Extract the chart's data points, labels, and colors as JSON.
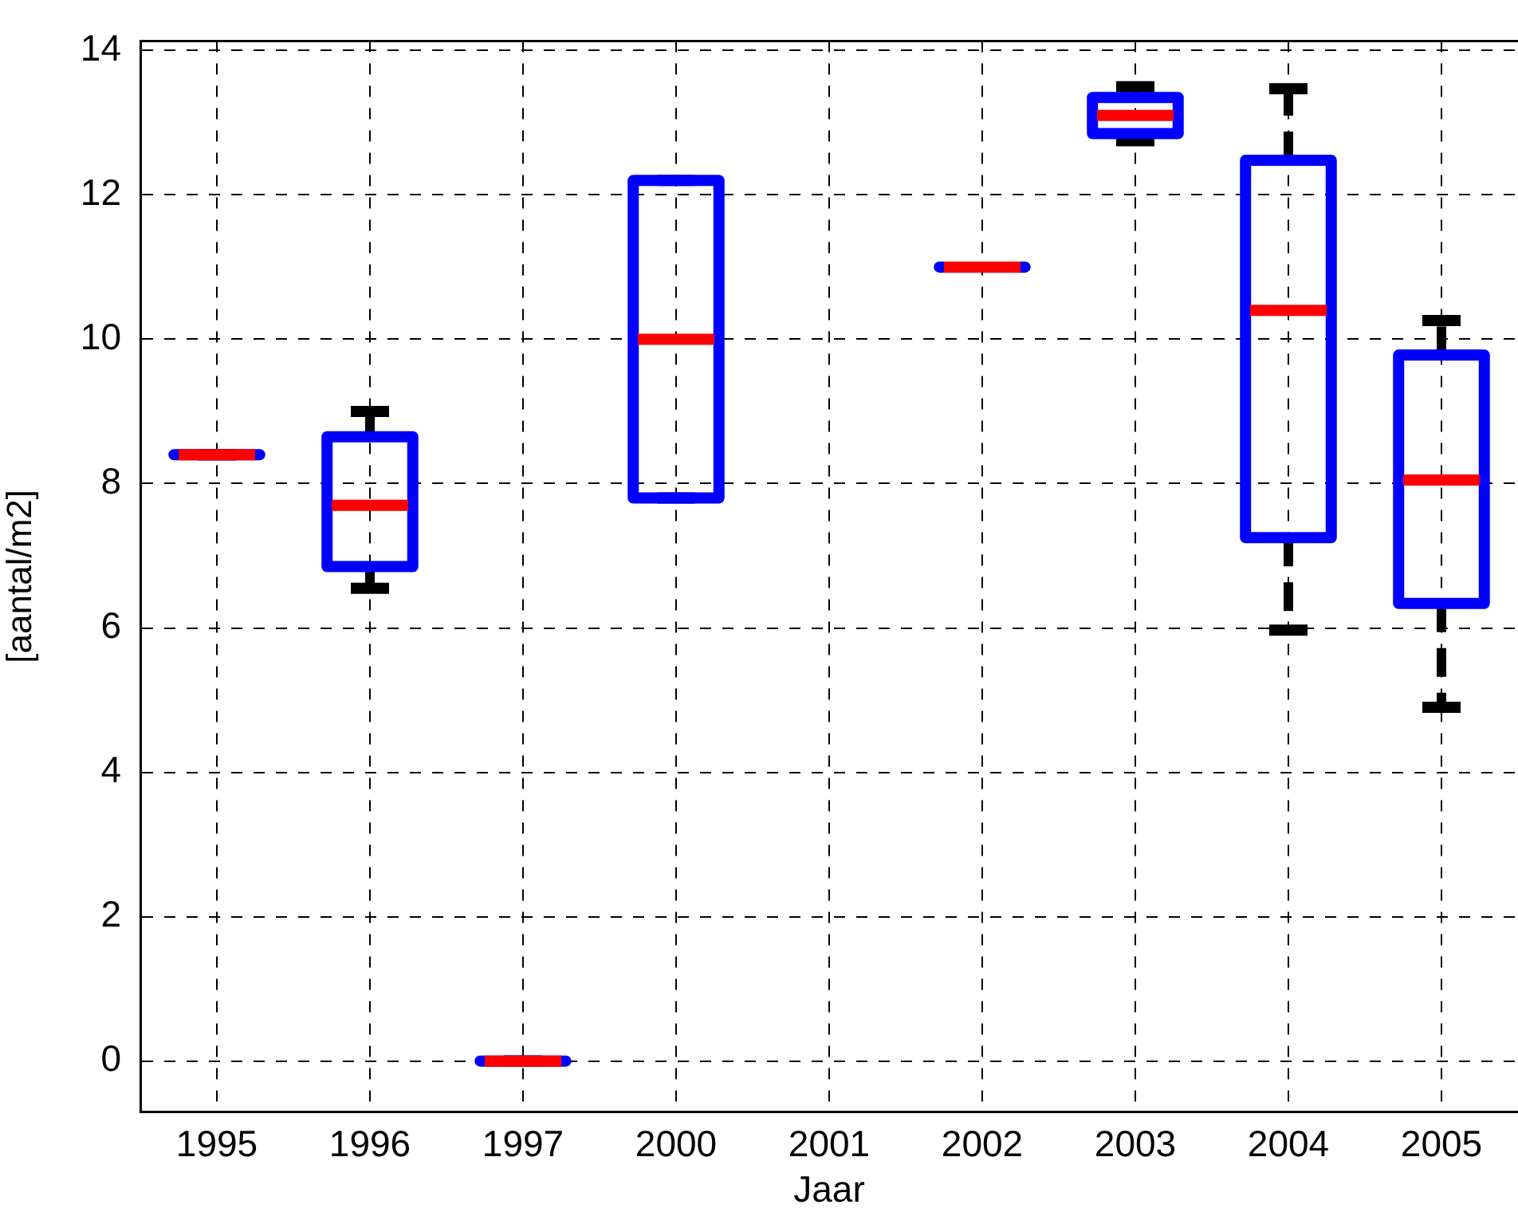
{
  "chart_data": {
    "type": "box",
    "xlabel": "Jaar",
    "ylabel": "[aantal/m2]",
    "categories": [
      "1995",
      "1996",
      "1997",
      "2000",
      "2001",
      "2002",
      "2003",
      "2004",
      "2005"
    ],
    "boxes": [
      {
        "low": 8.4,
        "q1": 8.4,
        "median": 8.4,
        "q3": 8.4,
        "high": 8.4
      },
      {
        "low": 6.55,
        "q1": 6.85,
        "median": 7.7,
        "q3": 8.65,
        "high": 9.0
      },
      {
        "low": 0,
        "q1": 0,
        "median": 0,
        "q3": 0,
        "high": 0
      },
      {
        "low": 7.8,
        "q1": 7.8,
        "median": 10.0,
        "q3": 12.2,
        "high": 12.2
      },
      null,
      {
        "low": 11.0,
        "q1": 11.0,
        "median": 11.0,
        "q3": 11.0,
        "high": 11.0
      },
      {
        "low": 12.75,
        "q1": 12.85,
        "median": 13.1,
        "q3": 13.35,
        "high": 13.5
      },
      {
        "low": 5.97,
        "q1": 7.25,
        "median": 10.4,
        "q3": 12.48,
        "high": 13.47
      },
      {
        "low": 4.9,
        "q1": 6.34,
        "median": 8.05,
        "q3": 9.78,
        "high": 10.26
      }
    ],
    "color": "#0000ff",
    "ylim": [
      -0.7,
      14.13
    ],
    "yticks": [
      0,
      2,
      4,
      6,
      8,
      10,
      12,
      14
    ],
    "grid": true
  }
}
